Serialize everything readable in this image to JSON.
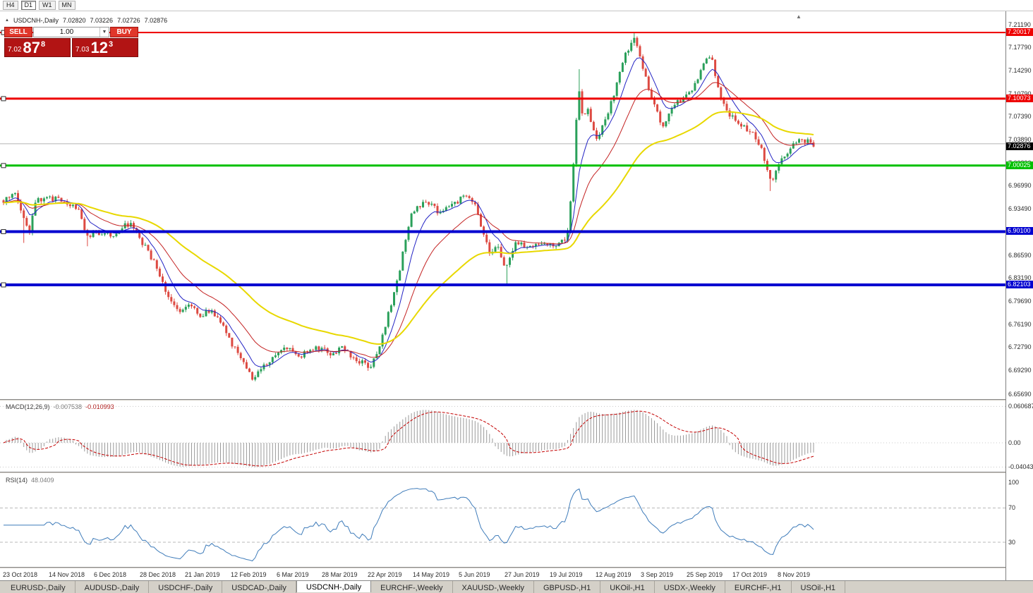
{
  "toolbar": {
    "timeframes": [
      {
        "label": "H4",
        "active": false
      },
      {
        "label": "D1",
        "active": true
      },
      {
        "label": "W1",
        "active": false
      },
      {
        "label": "MN",
        "active": false
      }
    ]
  },
  "icons": {
    "header_arrow": "▲",
    "shift_marker": "▲",
    "dropdown_caret": "▼"
  },
  "chart_header": {
    "symbol": "USDCNH-,Daily",
    "open": "7.02820",
    "high": "7.03226",
    "low": "7.02726",
    "close": "7.02876"
  },
  "trade_widget": {
    "sell_label": "SELL",
    "buy_label": "BUY",
    "volume": "1.00",
    "sell_price": {
      "big": "7.02",
      "pips": "87",
      "sup": "8"
    },
    "buy_price": {
      "big": "7.03",
      "pips": "12",
      "sup": "3"
    }
  },
  "date_axis": [
    "23 Oct 2018",
    "14 Nov 2018",
    "6 Dec 2018",
    "28 Dec 2018",
    "21 Jan 2019",
    "12 Feb 2019",
    "6 Mar 2019",
    "28 Mar 2019",
    "22 Apr 2019",
    "14 May 2019",
    "5 Jun 2019",
    "27 Jun 2019",
    "19 Jul 2019",
    "12 Aug 2019",
    "3 Sep 2019",
    "25 Sep 2019",
    "17 Oct 2019",
    "8 Nov 2019"
  ],
  "tabs": [
    {
      "label": "EURUSD-,Daily",
      "active": false
    },
    {
      "label": "AUDUSD-,Daily",
      "active": false
    },
    {
      "label": "USDCHF-,Daily",
      "active": false
    },
    {
      "label": "USDCAD-,Daily",
      "active": false
    },
    {
      "label": "USDCNH-,Daily",
      "active": true
    },
    {
      "label": "EURCHF-,Weekly",
      "active": false
    },
    {
      "label": "XAUUSD-,Weekly",
      "active": false
    },
    {
      "label": "GBPUSD-,H1",
      "active": false
    },
    {
      "label": "UKOil-,H1",
      "active": false
    },
    {
      "label": "USDX-,Weekly",
      "active": false
    },
    {
      "label": "EURCHF-,H1",
      "active": false
    },
    {
      "label": "USOil-,H1",
      "active": false
    }
  ],
  "chart_data": {
    "type": "candlestick",
    "symbol": "USDCNH",
    "timeframe": "Daily",
    "last_price": 7.02876,
    "current_price_label": "7.02876",
    "num_candles": 281,
    "colors": {
      "up": "#2aa05a",
      "down": "#dd4a42",
      "ma_fast": "#2323c4",
      "ma_mid": "#c42323",
      "ma_slow": "#e8d800",
      "macd_hist": "#9a9a9a",
      "macd_signal": "#c40000",
      "rsi": "#3f7cba"
    },
    "price_axis": {
      "min": 6.6494,
      "max": 7.2299,
      "ticks": [
        "7.21190",
        "7.17790",
        "7.14290",
        "7.10790",
        "7.07390",
        "7.03890",
        "7.00390",
        "6.96990",
        "6.93490",
        "6.89990",
        "6.86590",
        "6.83190",
        "6.79690",
        "6.76190",
        "6.72790",
        "6.69290",
        "6.65690"
      ]
    },
    "hlines": [
      {
        "price": 7.20017,
        "label": "7.20017",
        "color": "#ee0000",
        "width": 2,
        "handle": true
      },
      {
        "price": 7.10073,
        "label": "7.10073",
        "color": "#ee0000",
        "width": 3,
        "handle": true
      },
      {
        "price": 7.00025,
        "label": "7.00025",
        "color": "#00c000",
        "width": 3,
        "handle": true
      },
      {
        "price": 6.901,
        "label": "6.90100",
        "color": "#0000d0",
        "width": 4,
        "handle": true
      },
      {
        "price": 6.82103,
        "label": "6.82103",
        "color": "#0000d0",
        "width": 4,
        "handle": true
      }
    ],
    "bid_line": {
      "price": 7.033,
      "color": "#b4b4b4"
    },
    "ma_periods": [
      {
        "period": 8,
        "color_key": "ma_fast",
        "width": 1
      },
      {
        "period": 21,
        "color_key": "ma_mid",
        "width": 1
      },
      {
        "period": 55,
        "color_key": "ma_slow",
        "width": 2
      }
    ],
    "price_path": [
      [
        0.0,
        6.948
      ],
      [
        0.013,
        6.96
      ],
      [
        0.024,
        6.93
      ],
      [
        0.031,
        6.897
      ],
      [
        0.039,
        6.945
      ],
      [
        0.052,
        6.952
      ],
      [
        0.074,
        6.948
      ],
      [
        0.092,
        6.935
      ],
      [
        0.102,
        6.896
      ],
      [
        0.118,
        6.9
      ],
      [
        0.134,
        6.895
      ],
      [
        0.146,
        6.908
      ],
      [
        0.157,
        6.915
      ],
      [
        0.17,
        6.888
      ],
      [
        0.19,
        6.848
      ],
      [
        0.203,
        6.8
      ],
      [
        0.218,
        6.783
      ],
      [
        0.23,
        6.795
      ],
      [
        0.243,
        6.773
      ],
      [
        0.256,
        6.785
      ],
      [
        0.269,
        6.762
      ],
      [
        0.282,
        6.733
      ],
      [
        0.296,
        6.705
      ],
      [
        0.308,
        6.678
      ],
      [
        0.321,
        6.7
      ],
      [
        0.334,
        6.715
      ],
      [
        0.349,
        6.726
      ],
      [
        0.363,
        6.714
      ],
      [
        0.376,
        6.72
      ],
      [
        0.39,
        6.726
      ],
      [
        0.404,
        6.719
      ],
      [
        0.418,
        6.726
      ],
      [
        0.432,
        6.713
      ],
      [
        0.445,
        6.703
      ],
      [
        0.453,
        6.698
      ],
      [
        0.466,
        6.735
      ],
      [
        0.478,
        6.79
      ],
      [
        0.487,
        6.83
      ],
      [
        0.495,
        6.88
      ],
      [
        0.504,
        6.928
      ],
      [
        0.515,
        6.943
      ],
      [
        0.524,
        6.947
      ],
      [
        0.535,
        6.932
      ],
      [
        0.548,
        6.937
      ],
      [
        0.56,
        6.943
      ],
      [
        0.569,
        6.96
      ],
      [
        0.581,
        6.947
      ],
      [
        0.591,
        6.9
      ],
      [
        0.6,
        6.87
      ],
      [
        0.61,
        6.878
      ],
      [
        0.621,
        6.845
      ],
      [
        0.631,
        6.882
      ],
      [
        0.645,
        6.879
      ],
      [
        0.659,
        6.883
      ],
      [
        0.673,
        6.879
      ],
      [
        0.687,
        6.881
      ],
      [
        0.697,
        6.9
      ],
      [
        0.703,
        6.99
      ],
      [
        0.71,
        7.12
      ],
      [
        0.715,
        7.068
      ],
      [
        0.721,
        7.092
      ],
      [
        0.728,
        7.052
      ],
      [
        0.734,
        7.038
      ],
      [
        0.741,
        7.066
      ],
      [
        0.748,
        7.088
      ],
      [
        0.755,
        7.112
      ],
      [
        0.762,
        7.15
      ],
      [
        0.77,
        7.172
      ],
      [
        0.778,
        7.196
      ],
      [
        0.787,
        7.158
      ],
      [
        0.795,
        7.122
      ],
      [
        0.804,
        7.09
      ],
      [
        0.813,
        7.053
      ],
      [
        0.822,
        7.08
      ],
      [
        0.83,
        7.092
      ],
      [
        0.839,
        7.102
      ],
      [
        0.848,
        7.112
      ],
      [
        0.857,
        7.133
      ],
      [
        0.866,
        7.155
      ],
      [
        0.873,
        7.166
      ],
      [
        0.88,
        7.132
      ],
      [
        0.889,
        7.09
      ],
      [
        0.898,
        7.075
      ],
      [
        0.909,
        7.064
      ],
      [
        0.921,
        7.053
      ],
      [
        0.931,
        7.038
      ],
      [
        0.941,
        7.005
      ],
      [
        0.948,
        6.972
      ],
      [
        0.957,
        7.0
      ],
      [
        0.968,
        7.022
      ],
      [
        0.978,
        7.033
      ],
      [
        0.988,
        7.04
      ],
      [
        1.0,
        7.029
      ]
    ],
    "spikes": [
      {
        "f": 0.71,
        "high": 7.145
      },
      {
        "f": 0.778,
        "high": 7.2005
      },
      {
        "f": 0.621,
        "low": 6.8215
      },
      {
        "f": 0.948,
        "low": 6.962
      },
      {
        "f": 0.024,
        "low": 6.884
      },
      {
        "f": 0.102,
        "low": 6.879
      }
    ],
    "macd_panel": {
      "title": "MACD(12,26,9)",
      "value_main": "-0.007538",
      "value_signal": "-0.010993",
      "axis_labels": [
        {
          "text": "0.060687",
          "value": 0.060687
        },
        {
          "text": "0.00",
          "value": 0
        },
        {
          "text": "-0.040435",
          "value": -0.040435
        }
      ]
    },
    "rsi_panel": {
      "title": "RSI(14)",
      "value": "48.0409",
      "axis_labels": [
        {
          "text": "100",
          "value": 100
        },
        {
          "text": "70",
          "value": 70
        },
        {
          "text": "30",
          "value": 30
        }
      ],
      "levels": [
        70,
        30
      ]
    }
  }
}
